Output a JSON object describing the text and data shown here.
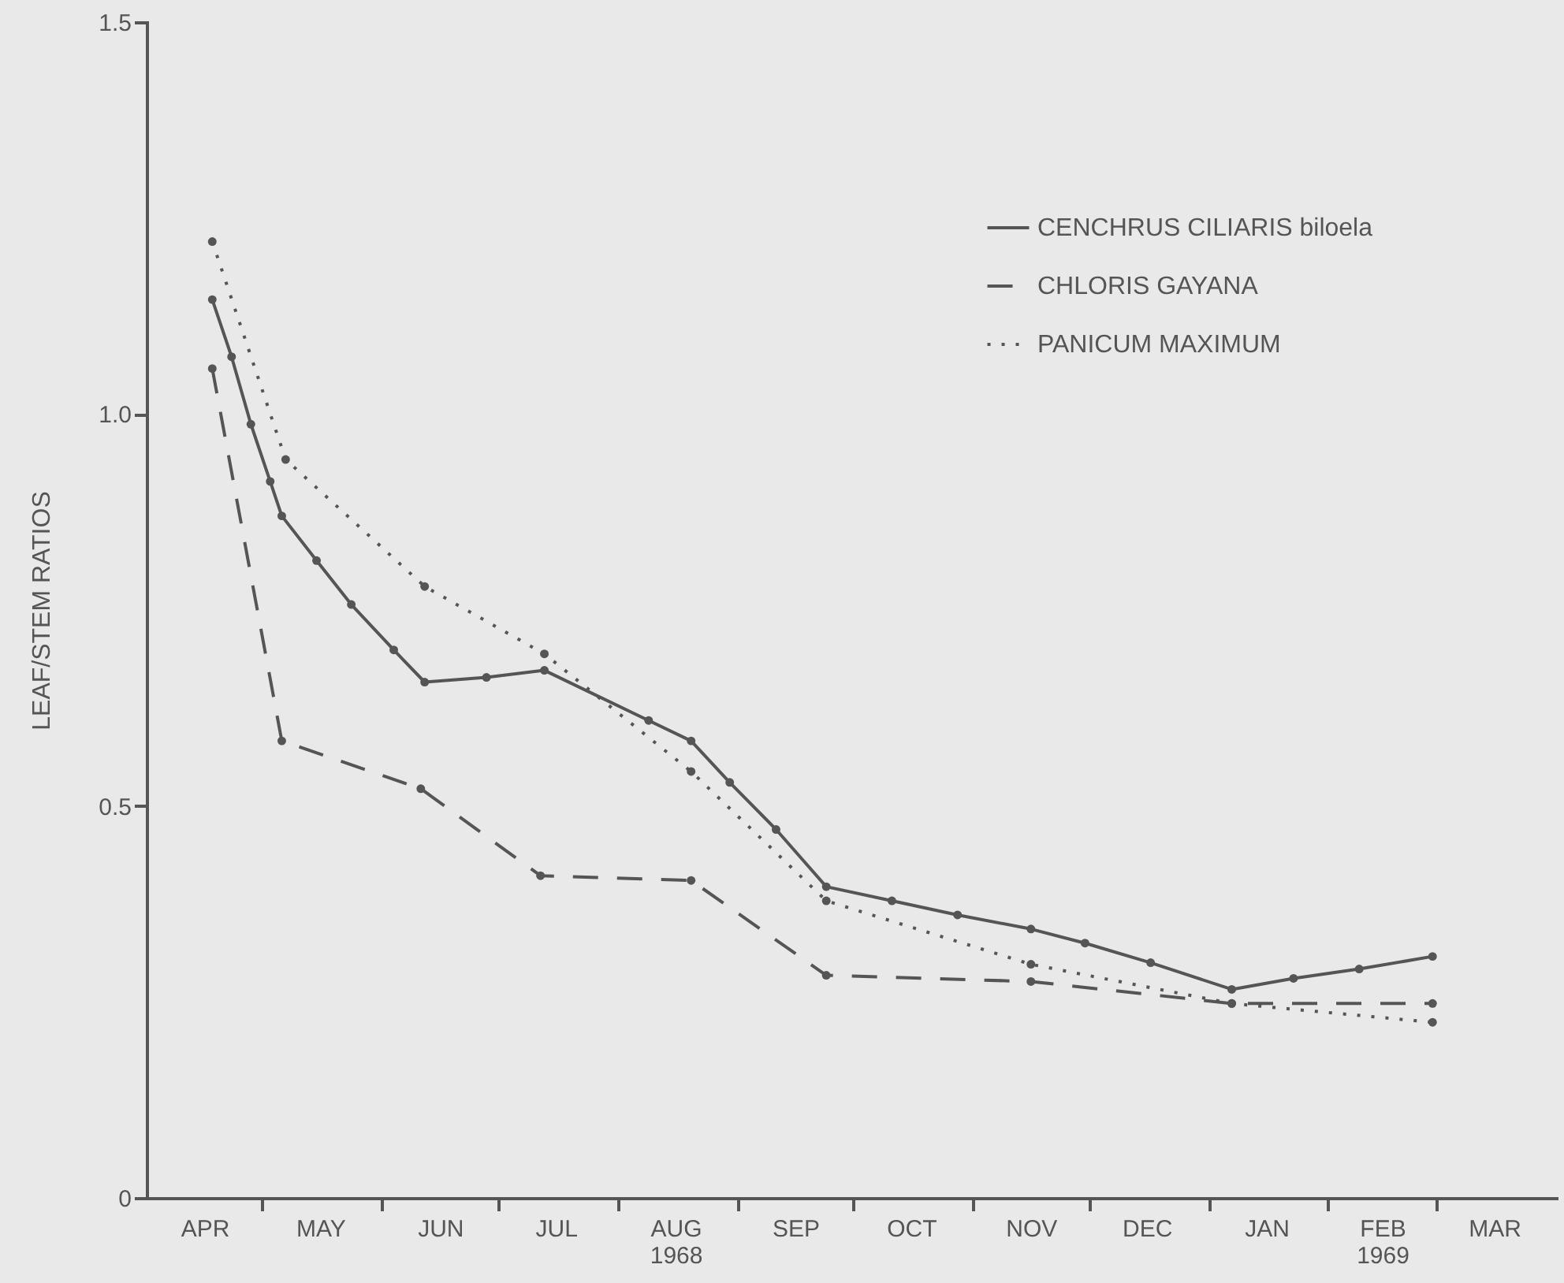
{
  "chart_data": {
    "type": "line",
    "ylabel": "LEAF/STEM RATIOS",
    "xlim": [
      "1968-04-01",
      "1969-04-01"
    ],
    "ylim": [
      0,
      1.5
    ],
    "xticks": [
      {
        "value": "1968-05-01",
        "label": null
      },
      {
        "value": "1968-06-01",
        "label": null
      },
      {
        "value": "1968-07-01",
        "label": null
      },
      {
        "value": "1968-08-01",
        "label": null
      },
      {
        "value": "1968-09-01",
        "label": null
      },
      {
        "value": "1968-10-01",
        "label": null
      },
      {
        "value": "1968-11-01",
        "label": null
      },
      {
        "value": "1968-12-01",
        "label": null
      },
      {
        "value": "1969-01-01",
        "label": null
      },
      {
        "value": "1969-02-01",
        "label": null
      },
      {
        "value": "1969-03-01",
        "label": null
      },
      {
        "value": "1968-04-16",
        "label": "APR"
      },
      {
        "value": "1968-05-16",
        "label": "MAY"
      },
      {
        "value": "1968-06-16",
        "label": "JUN"
      },
      {
        "value": "1968-07-16",
        "label": "JUL"
      },
      {
        "value": "1968-08-16",
        "label": "AUG\n1968"
      },
      {
        "value": "1968-09-16",
        "label": "SEP"
      },
      {
        "value": "1968-10-16",
        "label": "OCT"
      },
      {
        "value": "1968-11-16",
        "label": "NOV"
      },
      {
        "value": "1968-12-16",
        "label": "DEC"
      },
      {
        "value": "1969-01-16",
        "label": "JAN"
      },
      {
        "value": "1969-02-15",
        "label": "FEB\n1969"
      },
      {
        "value": "1969-03-16",
        "label": "MAR"
      }
    ],
    "yticks": [
      0,
      0.5,
      {
        "value": 1,
        "label": "1.0"
      },
      1.5
    ],
    "grid": false,
    "legend": "top right",
    "marker": "circle",
    "series": [
      {
        "name": "CENCHRUS CILIARIS biloela",
        "color": "#555555",
        "line_style": "solid",
        "x": [
          "1968-04-18",
          "1968-04-23",
          "1968-04-28",
          "1968-05-03",
          "1968-05-06",
          "1968-05-15",
          "1968-05-24",
          "1968-06-04",
          "1968-06-12",
          "1968-06-28",
          "1968-07-13",
          "1968-08-09",
          "1968-08-20",
          "1968-08-30",
          "1968-09-11",
          "1968-09-24",
          "1968-10-11",
          "1968-10-28",
          "1968-11-16",
          "1968-11-30",
          "1968-12-17",
          "1969-01-07",
          "1969-01-23",
          "1969-02-09",
          "1969-02-28"
        ],
        "values": [
          1.146,
          1.073,
          0.987,
          0.914,
          0.87,
          0.813,
          0.757,
          0.699,
          0.658,
          0.664,
          0.673,
          0.609,
          0.583,
          0.53,
          0.47,
          0.397,
          0.379,
          0.361,
          0.343,
          0.325,
          0.3,
          0.266,
          0.28,
          0.292,
          0.308
        ]
      },
      {
        "name": "CHLORIS GAYANA",
        "color": "#555555",
        "line_style": "dashed",
        "x": [
          "1968-04-18",
          "1968-05-06",
          "1968-06-11",
          "1968-07-12",
          "1968-08-20",
          "1968-09-24",
          "1968-11-16",
          "1969-01-07",
          "1969-02-28"
        ],
        "values": [
          1.058,
          0.583,
          0.522,
          0.411,
          0.405,
          0.284,
          0.276,
          0.248,
          0.248
        ]
      },
      {
        "name": "PANICUM MAXIMUM",
        "color": "#555555",
        "line_style": "dotted",
        "x": [
          "1968-04-18",
          "1968-05-07",
          "1968-06-12",
          "1968-07-13",
          "1968-08-20",
          "1968-09-24",
          "1968-11-16",
          "1969-01-07",
          "1969-02-28"
        ],
        "values": [
          1.22,
          0.942,
          0.78,
          0.694,
          0.544,
          0.379,
          0.298,
          0.248,
          0.224
        ]
      }
    ]
  }
}
